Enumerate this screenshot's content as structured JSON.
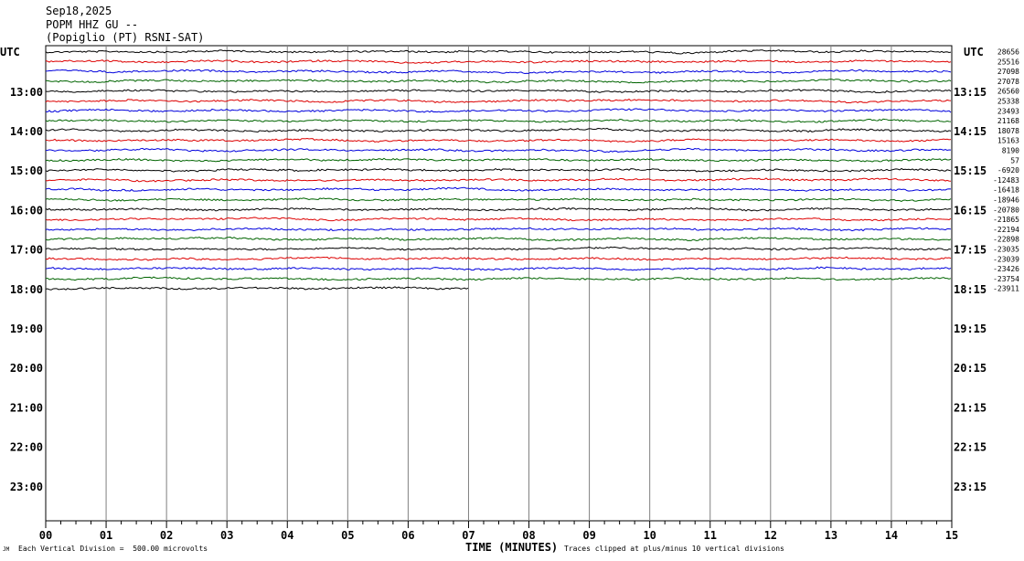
{
  "header": {
    "date": "Sep18,2025",
    "station": "POPM HHZ GU --",
    "location": "(Popiglio (PT) RSNI-SAT)"
  },
  "utc_left": "UTC",
  "utc_right": "UTC",
  "footer": {
    "small_mark": "JM",
    "vertical_division": "Each Vertical Division =  500.00 microvolts",
    "x_title": "TIME (MINUTES)",
    "clip_note": "Traces clipped at plus/minus 10 vertical divisions"
  },
  "chart_data": {
    "type": "line",
    "xlabel": "TIME (MINUTES)",
    "xlim": [
      0,
      15
    ],
    "x_ticks": [
      "00",
      "01",
      "02",
      "03",
      "04",
      "05",
      "06",
      "07",
      "08",
      "09",
      "10",
      "11",
      "12",
      "13",
      "14",
      "15"
    ],
    "grid": true,
    "trace_colors": [
      "#000000",
      "#dd0000",
      "#0000dd",
      "#006400"
    ],
    "left_hour_labels": [
      "13:00",
      "14:00",
      "15:00",
      "16:00",
      "17:00",
      "18:00",
      "19:00",
      "20:00",
      "21:00",
      "22:00",
      "23:00"
    ],
    "right_hour_labels": [
      "13:15",
      "14:15",
      "15:15",
      "16:15",
      "17:15",
      "18:15",
      "19:15",
      "20:15",
      "21:15",
      "22:15",
      "23:15"
    ],
    "trace_offsets": [
      "28656",
      "25516",
      "27098",
      "27078",
      "26560",
      "25338",
      "23493",
      "21168",
      "18078",
      "15163",
      "8190",
      "57",
      "-6920",
      "-12483",
      "-16418",
      "-18946",
      "-20780",
      "-21865",
      "-22194",
      "-22898",
      "-23035",
      "-23039",
      "-23426",
      "-23754",
      "-23911"
    ],
    "last_trace_end_minute": 7.0
  }
}
